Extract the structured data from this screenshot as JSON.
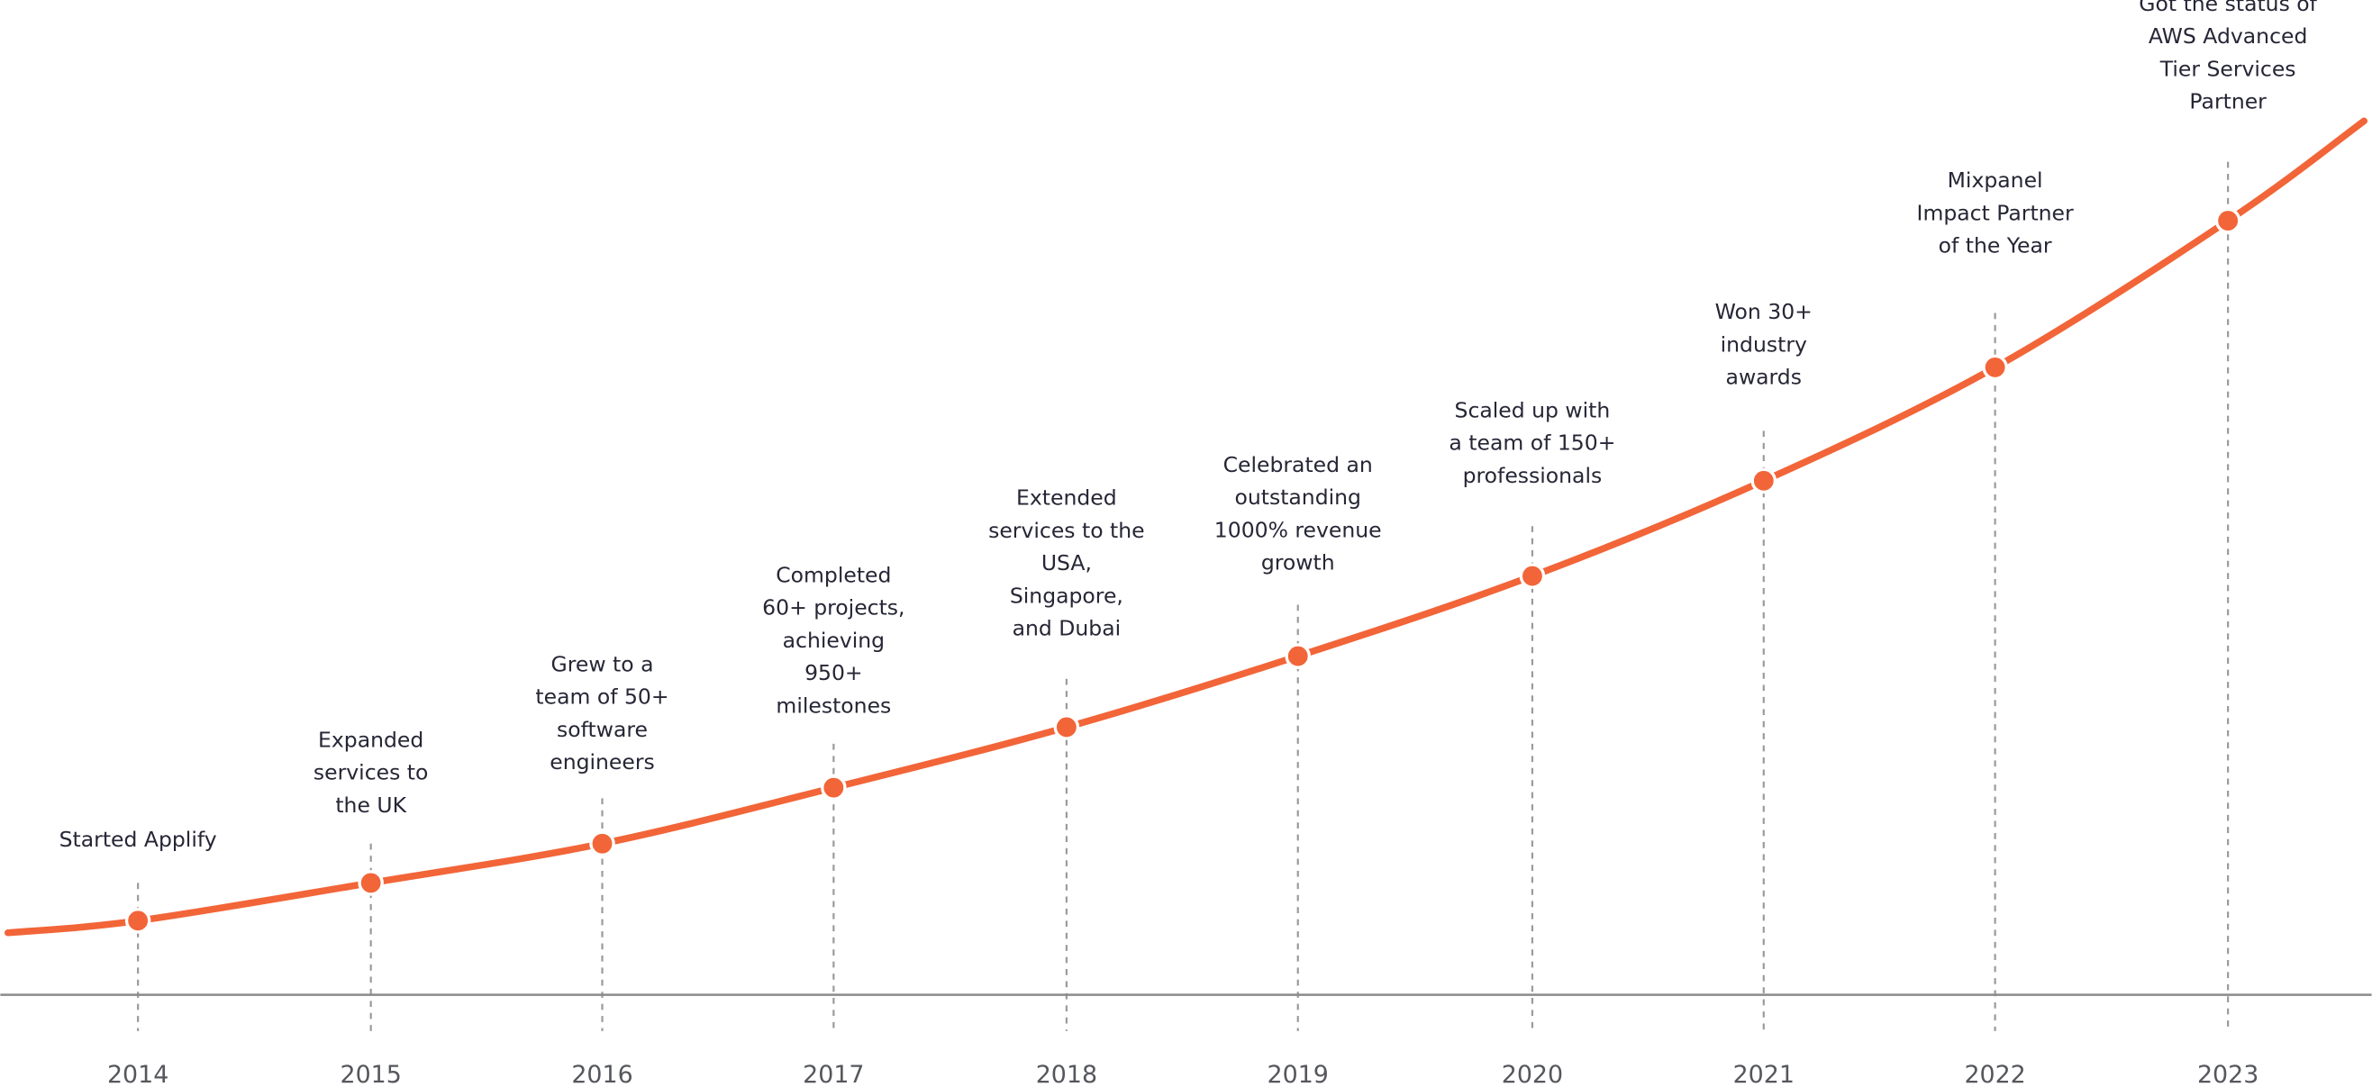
{
  "chart_data": {
    "type": "line",
    "title": "",
    "xlabel": "",
    "ylabel": "",
    "categories": [
      "2014",
      "2015",
      "2016",
      "2017",
      "2018",
      "2019",
      "2020",
      "2021",
      "2022",
      "2023"
    ],
    "annotations": [
      [
        "Started Applify"
      ],
      [
        "Expanded",
        "services to",
        "the UK"
      ],
      [
        "Grew to a",
        "team of 50+",
        "software",
        "engineers"
      ],
      [
        "Completed",
        "60+ projects,",
        "achieving",
        "950+",
        "milestones"
      ],
      [
        "Extended",
        "services to the",
        "USA,",
        "Singapore,",
        "and Dubai"
      ],
      [
        "Celebrated an",
        "outstanding",
        "1000% revenue",
        "growth"
      ],
      [
        "Scaled up with",
        "a team of 150+",
        "professionals"
      ],
      [
        "Won 30+",
        "industry",
        "awards"
      ],
      [
        "Mixpanel",
        "Impact Partner",
        "of the Year"
      ],
      [
        "Got the status of",
        "AWS Advanced",
        "Tier Services",
        "Partner"
      ]
    ],
    "trend": "exponential growth",
    "grid": false,
    "legend": "none",
    "colors": {
      "line": "#F26538",
      "axis": "#8a8a8a",
      "guide": "#9a9a9a",
      "text": "#262636",
      "year": "#55575c"
    }
  }
}
